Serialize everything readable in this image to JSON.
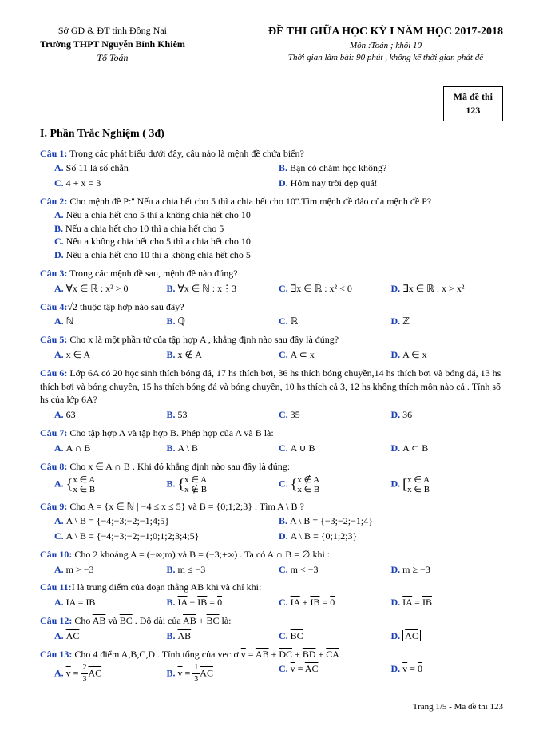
{
  "header": {
    "org1": "Sở GD & ĐT tỉnh Đồng Nai",
    "org2": "Trường THPT Nguyễn Bỉnh Khiêm",
    "org3": "Tổ Toán",
    "title": "ĐỀ THI GIỮA HỌC KỲ I NĂM HỌC 2017-2018",
    "subject": "Môn :Toán ; khối 10",
    "time": "Thời gian làm bài: 90 phút , không kể thời gian phát đề",
    "code_label": "Mã đề thi",
    "code": "123"
  },
  "section1": "I. Phần Trắc Nghiệm ( 3đ)",
  "q1": {
    "label": "Câu 1:",
    "text": " Trong các phát biểu dưới đây, câu nào là mệnh đề chứa biến?",
    "a": "Số 11 là số chẵn",
    "b": "Bạn có chăm học không?",
    "c": "4 + x = 3",
    "d": "Hôm nay trời đẹp quá!"
  },
  "q2": {
    "label": "Câu 2:",
    "text": " Cho mệnh đề P:'' Nếu a chia hết cho 5 thì a chia hết cho 10''.Tìm mệnh đề đảo của mệnh đề P?",
    "a": "Nếu a chia hết cho 5 thì a không chia hết cho 10",
    "b": "Nếu a chia hết cho 10 thì a chia hết cho 5",
    "c": "Nếu a không chia hết cho 5 thì a chia hết cho 10",
    "d": "Nếu a chia hết cho 10 thì a không chia hết cho 5"
  },
  "q3": {
    "label": "Câu 3:",
    "text": " Trong các mệnh đề sau, mệnh đề nào đúng?",
    "a": "∀x ∈ ℝ : x² > 0",
    "b": "∀x ∈ ℕ : x⋮3",
    "c": "∃x ∈ ℝ : x² < 0",
    "d": "∃x ∈ ℝ : x > x²"
  },
  "q4": {
    "label": "Câu 4:",
    "text": " thuộc tập hợp nào sau đây?",
    "sqrt": "√2",
    "a": "ℕ",
    "b": "ℚ",
    "c": "ℝ",
    "d": "ℤ"
  },
  "q5": {
    "label": "Câu 5:",
    "text": " Cho x là một phần tử của tập hợp A , khẳng định nào sau đây là đúng?",
    "a": "x ∈ A",
    "b": "x ∉ A",
    "c": "A ⊂ x",
    "d": "A ∈ x"
  },
  "q6": {
    "label": "Câu 6:",
    "text": " Lớp 6A có 20 học sinh thích bóng đá, 17 hs thích bơi, 36 hs thích bóng chuyền,14 hs thích bơi và bóng đá, 13 hs thích bơi và bóng chuyền, 15 hs thích bóng đá và bóng chuyền, 10 hs thích cả 3, 12 hs không thích môn nào cả . Tính số hs của lớp 6A?",
    "a": "63",
    "b": "53",
    "c": "35",
    "d": "36"
  },
  "q7": {
    "label": "Câu 7:",
    "text": " Cho tập hợp A và tập hợp B. Phép hợp của A và B là:",
    "a": "A ∩ B",
    "b": "A \\ B",
    "c": "A ∪ B",
    "d": "A ⊂ B"
  },
  "q8": {
    "label": "Câu 8:",
    "text": " Cho x ∈ A ∩ B . Khi đó khẳng định nào sau đây là đúng:",
    "a1": "x ∈ A",
    "a2": "x ∈ B",
    "b1": "x ∈ A",
    "b2": "x ∉ B",
    "c1": "x ∉ A",
    "c2": "x ∈ B",
    "d1": "x ∈ A",
    "d2": "x ∈ B"
  },
  "q9": {
    "label": "Câu 9:",
    "text": " Cho A = {x ∈ ℕ | −4 ≤ x ≤ 5} và B = {0;1;2;3} . Tìm A \\ B ?",
    "a": "A \\ B = {−4;−3;−2;−1;4;5}",
    "b": "A \\ B = {−3;−2;−1;4}",
    "c": "A \\ B = {−4;−3;−2;−1;0;1;2;3;4;5}",
    "d": "A \\ B = {0;1;2;3}"
  },
  "q10": {
    "label": "Câu 10:",
    "text": " Cho 2 khoảng A = (−∞;m) và B = (−3;+∞) . Ta có A ∩ B = ∅ khi :",
    "a": "m > −3",
    "b": "m ≤ −3",
    "c": "m < −3",
    "d": "m ≥ −3"
  },
  "q11": {
    "label": "Câu 11:",
    "text": "I là trung điểm của đoạn thẳng AB khi và chỉ khi:",
    "a": "IA = IB",
    "b_pre": "",
    "c_pre": "",
    "d_pre": ""
  },
  "q12": {
    "label": "Câu 12:",
    "text_pre": " Cho ",
    "text_mid": " và ",
    "text_post": " . Độ dài của ",
    "text_end": " là:"
  },
  "q13": {
    "label": "Câu 13:",
    "text": " Cho 4 điểm A,B,C,D . Tính tổng của vectơ "
  },
  "footer": "Trang 1/5 - Mã đề thi 123"
}
